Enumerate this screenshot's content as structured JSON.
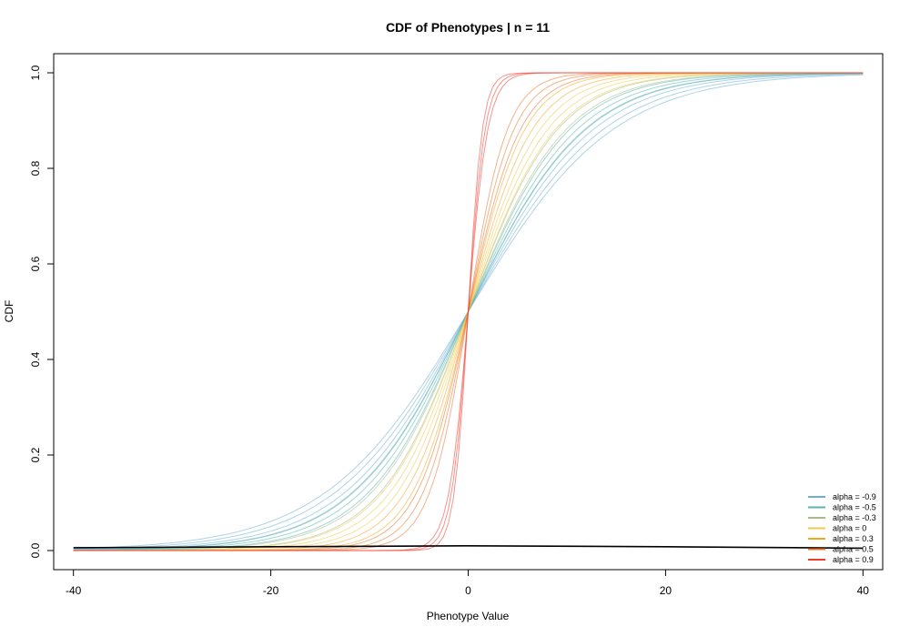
{
  "chart_data": {
    "type": "line",
    "title": "CDF of Phenotypes | n = 11",
    "xlabel": "Phenotype Value",
    "ylabel": "CDF",
    "xlim": [
      -42,
      42
    ],
    "ylim": [
      -0.04,
      1.04
    ],
    "xticks": [
      -40,
      -20,
      0,
      20,
      40
    ],
    "xtick_labels": [
      "-40",
      "-20",
      "0",
      "20",
      "40"
    ],
    "yticks": [
      0.0,
      0.2,
      0.4,
      0.6,
      0.8,
      1.0
    ],
    "ytick_labels": [
      "0.0",
      "0.2",
      "0.4",
      "0.6",
      "0.8",
      "1.0"
    ],
    "grid": false,
    "legend_position": "bottom-right",
    "x_range": [
      -40,
      40
    ],
    "series": [
      {
        "name": "alpha = -0.9",
        "color": "#6baed6",
        "replicate_scales": [
          10.8,
          11.5,
          12.4,
          13.3
        ]
      },
      {
        "name": "alpha = -0.5",
        "color": "#5ab4ac",
        "replicate_scales": [
          9.3,
          10.0,
          10.7
        ]
      },
      {
        "name": "alpha = -0.3",
        "color": "#a6bd8a",
        "replicate_scales": [
          8.2,
          9.0
        ]
      },
      {
        "name": "alpha = 0",
        "color": "#f2c94c",
        "replicate_scales": [
          6.6,
          7.3,
          8.0
        ]
      },
      {
        "name": "alpha = 0.3",
        "color": "#f5a623",
        "replicate_scales": [
          5.2,
          5.9
        ]
      },
      {
        "name": "alpha = 0.5",
        "color": "#e8742a",
        "replicate_scales": [
          3.6,
          4.2,
          4.8
        ]
      },
      {
        "name": "alpha = 0.9",
        "color": "#ef3b2c",
        "replicate_scales": [
          1.3,
          1.55,
          1.8
        ]
      }
    ],
    "density_line": {
      "color": "#000000",
      "points": [
        [
          -40,
          0.006
        ],
        [
          -20,
          0.008
        ],
        [
          0,
          0.01
        ],
        [
          20,
          0.008
        ],
        [
          40,
          0.005
        ]
      ]
    }
  }
}
